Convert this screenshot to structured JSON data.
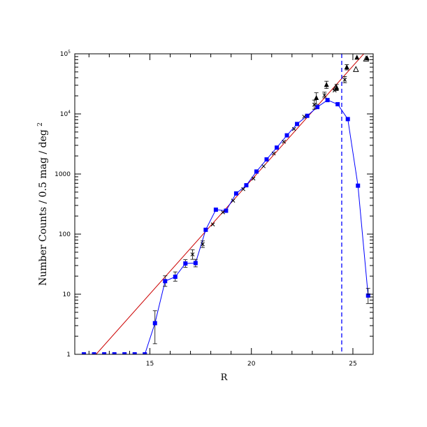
{
  "chart_data": {
    "type": "scatter",
    "title": "",
    "xlabel": "R",
    "ylabel": "Number Counts / 0.5 mag / deg",
    "ylabel_superscript": "2",
    "xlim": [
      11.3,
      26.0
    ],
    "ylim": [
      1,
      100000
    ],
    "yscale": "log",
    "grid": false,
    "legend": "none",
    "x_ticks": [
      {
        "value": 15,
        "label": "15"
      },
      {
        "value": 20,
        "label": "20"
      },
      {
        "value": 25,
        "label": "25"
      }
    ],
    "y_ticks": [
      {
        "value": 1,
        "label": "1",
        "sup": ""
      },
      {
        "value": 10,
        "label": "10",
        "sup": ""
      },
      {
        "value": 100,
        "label": "100",
        "sup": ""
      },
      {
        "value": 1000,
        "label": "1000",
        "sup": ""
      },
      {
        "value": 10000,
        "label": "10",
        "sup": "4"
      },
      {
        "value": 100000,
        "label": "10",
        "sup": "5"
      }
    ],
    "colors": {
      "axis": "#000000",
      "squares": "#0000ff",
      "model_line": "#cc0000",
      "black_points": "#000000",
      "cutoff_line": "#0000ff"
    },
    "series": [
      {
        "id": "blue-squares",
        "marker": "square",
        "connected": true,
        "points": [
          {
            "x": 11.75,
            "y": 1
          },
          {
            "x": 12.25,
            "y": 1
          },
          {
            "x": 12.75,
            "y": 1
          },
          {
            "x": 13.25,
            "y": 1
          },
          {
            "x": 13.75,
            "y": 1
          },
          {
            "x": 14.25,
            "y": 1
          },
          {
            "x": 14.75,
            "y": 1
          },
          {
            "x": 15.25,
            "y": 3.3,
            "err": [
              1.5,
              5.3
            ]
          },
          {
            "x": 15.75,
            "y": 16.5,
            "err": [
              13.5,
              20.2
            ]
          },
          {
            "x": 16.25,
            "y": 19.5,
            "err": [
              16.5,
              23.5
            ]
          },
          {
            "x": 16.75,
            "y": 32.5,
            "err": [
              28,
              37.5
            ]
          },
          {
            "x": 17.25,
            "y": 33,
            "err": [
              28.5,
              38
            ]
          },
          {
            "x": 17.75,
            "y": 118
          },
          {
            "x": 18.25,
            "y": 255
          },
          {
            "x": 18.75,
            "y": 245
          },
          {
            "x": 19.25,
            "y": 475
          },
          {
            "x": 19.75,
            "y": 650
          },
          {
            "x": 20.25,
            "y": 1100
          },
          {
            "x": 20.75,
            "y": 1750
          },
          {
            "x": 21.25,
            "y": 2750
          },
          {
            "x": 21.75,
            "y": 4400
          },
          {
            "x": 22.25,
            "y": 6800
          },
          {
            "x": 22.75,
            "y": 9300
          },
          {
            "x": 23.25,
            "y": 13000
          },
          {
            "x": 23.75,
            "y": 17000
          },
          {
            "x": 24.25,
            "y": 14500
          },
          {
            "x": 24.75,
            "y": 8200
          },
          {
            "x": 25.25,
            "y": 640
          },
          {
            "x": 25.75,
            "y": 9.5,
            "err": [
              7,
              12.5
            ]
          }
        ]
      },
      {
        "id": "black-crosses",
        "marker": "x",
        "connected": false,
        "points": [
          {
            "x": 17.1,
            "y": 46,
            "err": [
              38,
              55
            ]
          },
          {
            "x": 17.6,
            "y": 68,
            "err": [
              60,
              77
            ]
          },
          {
            "x": 18.1,
            "y": 145
          },
          {
            "x": 18.6,
            "y": 230
          },
          {
            "x": 19.1,
            "y": 360
          },
          {
            "x": 19.6,
            "y": 560
          },
          {
            "x": 20.1,
            "y": 840
          },
          {
            "x": 20.6,
            "y": 1350
          },
          {
            "x": 21.1,
            "y": 2200
          },
          {
            "x": 21.6,
            "y": 3450
          },
          {
            "x": 22.1,
            "y": 5600
          },
          {
            "x": 22.6,
            "y": 9000
          },
          {
            "x": 23.1,
            "y": 14200,
            "err": [
              12000,
              17000
            ]
          },
          {
            "x": 23.6,
            "y": 20500,
            "err": [
              18500,
              23000
            ]
          },
          {
            "x": 24.1,
            "y": 24500
          },
          {
            "x": 24.6,
            "y": 37000,
            "err": [
              33000,
              42000
            ]
          }
        ]
      },
      {
        "id": "black-triangles",
        "marker": "triangle",
        "connected": false,
        "points": [
          {
            "x": 23.2,
            "y": 18500,
            "err": [
              14500,
              22500
            ]
          },
          {
            "x": 23.7,
            "y": 30500,
            "err": [
              26500,
              35000
            ]
          },
          {
            "x": 24.2,
            "y": 27500,
            "err": [
              24500,
              31000
            ]
          },
          {
            "x": 24.7,
            "y": 60000,
            "err": [
              54000,
              66000
            ]
          },
          {
            "x": 25.2,
            "y": 87000
          },
          {
            "x": 25.7,
            "y": 85000
          }
        ]
      },
      {
        "id": "open-triangles",
        "marker": "open-triangle",
        "connected": false,
        "points": [
          {
            "x": 24.15,
            "y": 27000
          },
          {
            "x": 25.15,
            "y": 55000
          },
          {
            "x": 25.65,
            "y": 82000
          }
        ]
      }
    ],
    "model_line": {
      "points": [
        {
          "x": 12.35,
          "y": 1
        },
        {
          "x": 26.0,
          "y": 150000
        }
      ]
    },
    "cutoff_line": {
      "x": 24.45,
      "style": "dashed"
    }
  }
}
